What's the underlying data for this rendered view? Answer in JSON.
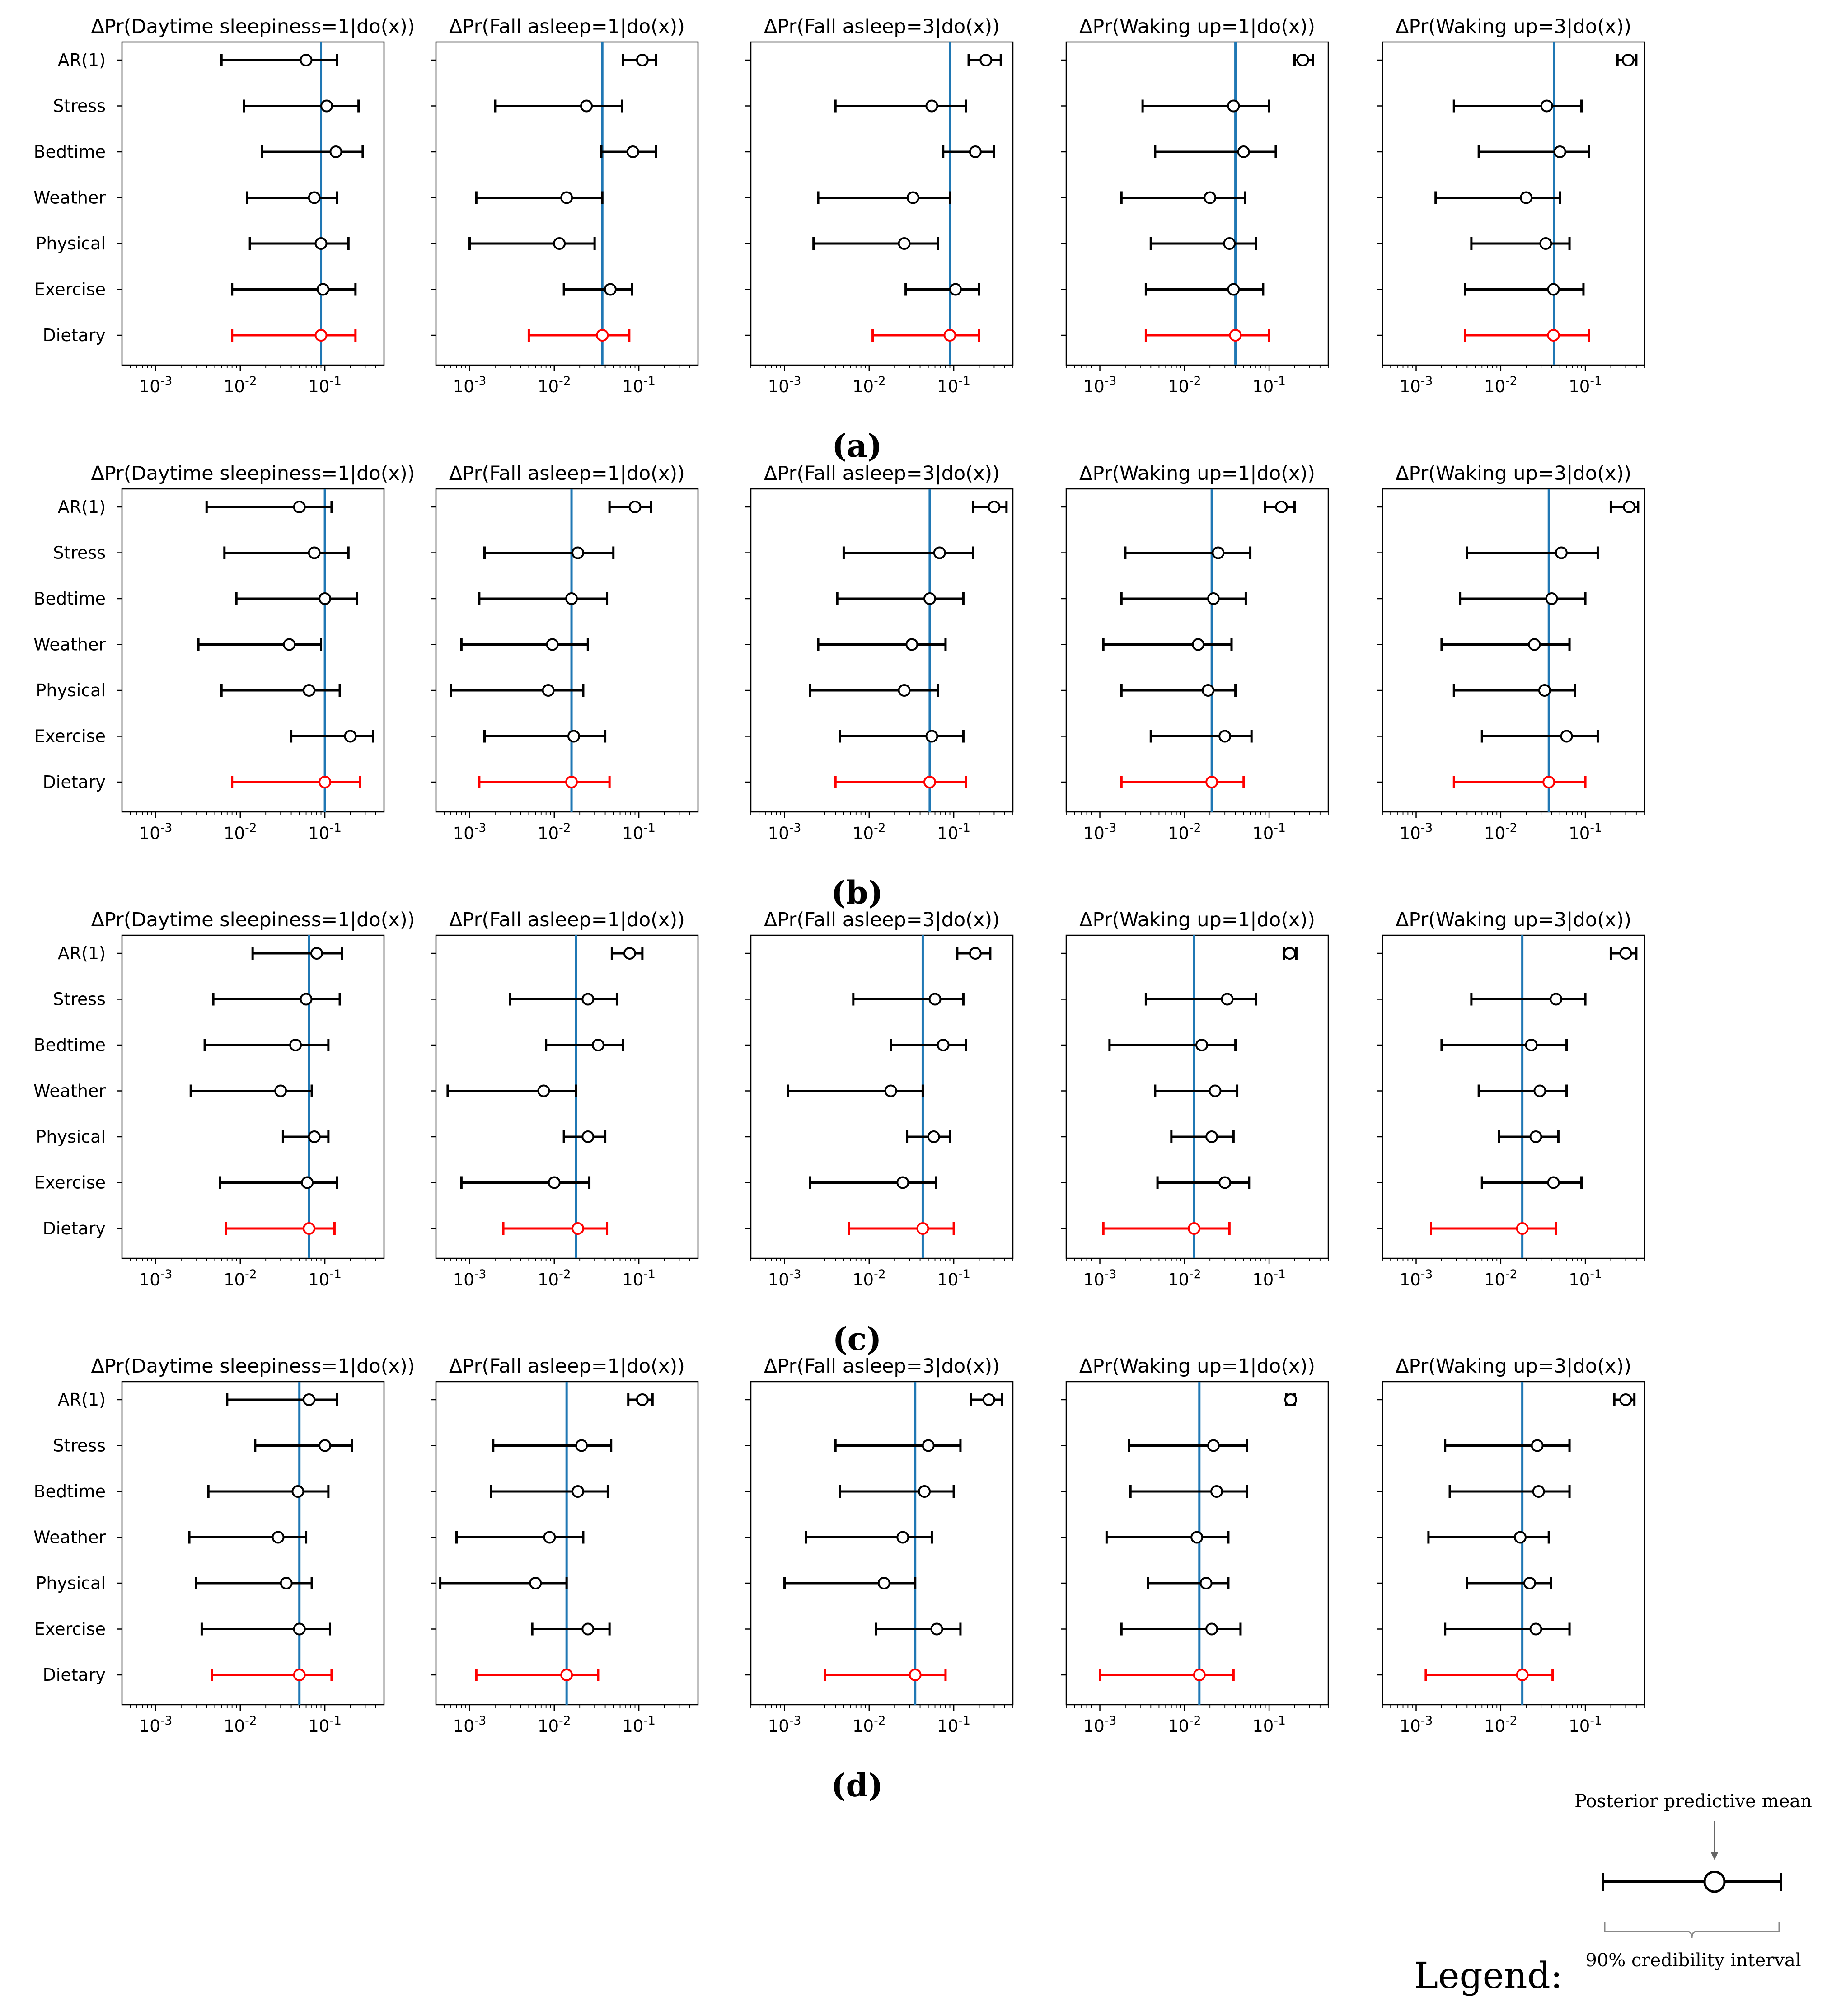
{
  "figure": {
    "panel_labels": [
      "(a)",
      "(b)",
      "(c)",
      "(d)"
    ],
    "legend": {
      "title": "Legend:",
      "mean_label": "Posterior predictive mean",
      "interval_label": "90% credibility interval"
    },
    "colors": {
      "marker": "#000000",
      "highlight": "#ff0000",
      "reference": "#1f77b4",
      "background": "#ffffff"
    }
  },
  "chart_data": {
    "type": "forest-plot",
    "xscale": "log",
    "xlim": [
      0.0004,
      0.5
    ],
    "xticks": [
      0.001,
      0.01,
      0.1
    ],
    "xtick_labels": [
      [
        "10",
        "-3"
      ],
      [
        "10",
        "-2"
      ],
      [
        "10",
        "-1"
      ]
    ],
    "categories": [
      "AR(1)",
      "Stress",
      "Bedtime",
      "Weather",
      "Physical",
      "Exercise",
      "Dietary"
    ],
    "highlight_category": "Dietary",
    "column_titles": [
      "ΔPr(Daytime sleepiness=1|do(x))",
      "ΔPr(Fall asleep=1|do(x))",
      "ΔPr(Fall asleep=3|do(x))",
      "ΔPr(Waking up=1|do(x))",
      "ΔPr(Waking up=3|do(x))"
    ],
    "panels": [
      {
        "label": "(a)",
        "subplots": [
          {
            "title": "ΔPr(Daytime sleepiness=1|do(x))",
            "reference": 0.09,
            "points": [
              [
                0.006,
                0.06,
                0.14
              ],
              [
                0.011,
                0.105,
                0.25
              ],
              [
                0.018,
                0.135,
                0.28
              ],
              [
                0.012,
                0.075,
                0.14
              ],
              [
                0.013,
                0.09,
                0.19
              ],
              [
                0.008,
                0.095,
                0.23
              ],
              [
                0.008,
                0.09,
                0.23
              ]
            ]
          },
          {
            "title": "ΔPr(Fall asleep=1|do(x))",
            "reference": 0.037,
            "points": [
              [
                0.065,
                0.11,
                0.16
              ],
              [
                0.002,
                0.024,
                0.063
              ],
              [
                0.036,
                0.085,
                0.16
              ],
              [
                0.0012,
                0.014,
                0.037
              ],
              [
                0.001,
                0.0115,
                0.03
              ],
              [
                0.013,
                0.046,
                0.083
              ],
              [
                0.005,
                0.037,
                0.077
              ]
            ]
          },
          {
            "title": "ΔPr(Fall asleep=3|do(x))",
            "reference": 0.09,
            "points": [
              [
                0.15,
                0.24,
                0.36
              ],
              [
                0.004,
                0.055,
                0.14
              ],
              [
                0.075,
                0.18,
                0.3
              ],
              [
                0.0025,
                0.033,
                0.09
              ],
              [
                0.0022,
                0.026,
                0.065
              ],
              [
                0.027,
                0.105,
                0.2
              ],
              [
                0.011,
                0.09,
                0.2
              ]
            ]
          },
          {
            "title": "ΔPr(Waking up=1|do(x))",
            "reference": 0.04,
            "points": [
              [
                0.2,
                0.25,
                0.33
              ],
              [
                0.0032,
                0.038,
                0.1
              ],
              [
                0.0045,
                0.05,
                0.12
              ],
              [
                0.0018,
                0.02,
                0.052
              ],
              [
                0.004,
                0.034,
                0.07
              ],
              [
                0.0035,
                0.038,
                0.085
              ],
              [
                0.0035,
                0.04,
                0.1
              ]
            ]
          },
          {
            "title": "ΔPr(Waking up=3|do(x))",
            "reference": 0.043,
            "points": [
              [
                0.24,
                0.32,
                0.4
              ],
              [
                0.0028,
                0.035,
                0.09
              ],
              [
                0.0055,
                0.05,
                0.11
              ],
              [
                0.0017,
                0.02,
                0.05
              ],
              [
                0.0045,
                0.034,
                0.065
              ],
              [
                0.0038,
                0.042,
                0.095
              ],
              [
                0.0038,
                0.042,
                0.11
              ]
            ]
          }
        ]
      },
      {
        "label": "(b)",
        "subplots": [
          {
            "title": "ΔPr(Daytime sleepiness=1|do(x))",
            "reference": 0.1,
            "points": [
              [
                0.004,
                0.05,
                0.12
              ],
              [
                0.0065,
                0.075,
                0.19
              ],
              [
                0.009,
                0.1,
                0.24
              ],
              [
                0.0032,
                0.038,
                0.09
              ],
              [
                0.006,
                0.065,
                0.15
              ],
              [
                0.04,
                0.2,
                0.37
              ],
              [
                0.008,
                0.1,
                0.26
              ]
            ]
          },
          {
            "title": "ΔPr(Fall asleep=1|do(x))",
            "reference": 0.016,
            "points": [
              [
                0.045,
                0.09,
                0.14
              ],
              [
                0.0015,
                0.019,
                0.05
              ],
              [
                0.0013,
                0.016,
                0.042
              ],
              [
                0.0008,
                0.0095,
                0.025
              ],
              [
                0.0006,
                0.0085,
                0.022
              ],
              [
                0.0015,
                0.017,
                0.04
              ],
              [
                0.0013,
                0.016,
                0.045
              ]
            ]
          },
          {
            "title": "ΔPr(Fall asleep=3|do(x))",
            "reference": 0.052,
            "points": [
              [
                0.17,
                0.3,
                0.42
              ],
              [
                0.005,
                0.068,
                0.17
              ],
              [
                0.0042,
                0.052,
                0.13
              ],
              [
                0.0025,
                0.032,
                0.08
              ],
              [
                0.002,
                0.026,
                0.065
              ],
              [
                0.0045,
                0.055,
                0.13
              ],
              [
                0.004,
                0.052,
                0.14
              ]
            ]
          },
          {
            "title": "ΔPr(Waking up=1|do(x))",
            "reference": 0.021,
            "points": [
              [
                0.09,
                0.14,
                0.2
              ],
              [
                0.002,
                0.025,
                0.06
              ],
              [
                0.0018,
                0.022,
                0.053
              ],
              [
                0.0011,
                0.0145,
                0.036
              ],
              [
                0.0018,
                0.019,
                0.04
              ],
              [
                0.004,
                0.03,
                0.062
              ],
              [
                0.0018,
                0.021,
                0.05
              ]
            ]
          },
          {
            "title": "ΔPr(Waking up=3|do(x))",
            "reference": 0.037,
            "points": [
              [
                0.2,
                0.33,
                0.42
              ],
              [
                0.004,
                0.052,
                0.14
              ],
              [
                0.0033,
                0.04,
                0.1
              ],
              [
                0.002,
                0.025,
                0.065
              ],
              [
                0.0028,
                0.033,
                0.075
              ],
              [
                0.006,
                0.06,
                0.14
              ],
              [
                0.0028,
                0.037,
                0.1
              ]
            ]
          }
        ]
      },
      {
        "label": "(c)",
        "subplots": [
          {
            "title": "ΔPr(Daytime sleepiness=1|do(x))",
            "reference": 0.065,
            "points": [
              [
                0.014,
                0.08,
                0.16
              ],
              [
                0.0048,
                0.06,
                0.15
              ],
              [
                0.0038,
                0.045,
                0.11
              ],
              [
                0.0026,
                0.03,
                0.07
              ],
              [
                0.032,
                0.075,
                0.11
              ],
              [
                0.0058,
                0.062,
                0.14
              ],
              [
                0.0068,
                0.065,
                0.13
              ]
            ]
          },
          {
            "title": "ΔPr(Fall asleep=1|do(x))",
            "reference": 0.018,
            "points": [
              [
                0.048,
                0.078,
                0.11
              ],
              [
                0.003,
                0.025,
                0.055
              ],
              [
                0.008,
                0.033,
                0.065
              ],
              [
                0.00055,
                0.0075,
                0.018
              ],
              [
                0.013,
                0.025,
                0.04
              ],
              [
                0.0008,
                0.01,
                0.026
              ],
              [
                0.0025,
                0.019,
                0.042
              ]
            ]
          },
          {
            "title": "ΔPr(Fall asleep=3|do(x))",
            "reference": 0.043,
            "points": [
              [
                0.11,
                0.18,
                0.27
              ],
              [
                0.0065,
                0.06,
                0.13
              ],
              [
                0.018,
                0.075,
                0.14
              ],
              [
                0.0011,
                0.018,
                0.043
              ],
              [
                0.028,
                0.058,
                0.09
              ],
              [
                0.002,
                0.025,
                0.062
              ],
              [
                0.0058,
                0.043,
                0.1
              ]
            ]
          },
          {
            "title": "ΔPr(Waking up=1|do(x))",
            "reference": 0.013,
            "points": [
              [
                0.15,
                0.175,
                0.21
              ],
              [
                0.0035,
                0.032,
                0.07
              ],
              [
                0.0013,
                0.016,
                0.04
              ],
              [
                0.0045,
                0.023,
                0.042
              ],
              [
                0.007,
                0.021,
                0.038
              ],
              [
                0.0048,
                0.03,
                0.058
              ],
              [
                0.0011,
                0.013,
                0.034
              ]
            ]
          },
          {
            "title": "ΔPr(Waking up=3|do(x))",
            "reference": 0.018,
            "points": [
              [
                0.2,
                0.3,
                0.4
              ],
              [
                0.0045,
                0.045,
                0.1
              ],
              [
                0.002,
                0.023,
                0.06
              ],
              [
                0.0055,
                0.029,
                0.06
              ],
              [
                0.0095,
                0.026,
                0.048
              ],
              [
                0.006,
                0.042,
                0.09
              ],
              [
                0.0015,
                0.018,
                0.045
              ]
            ]
          }
        ]
      },
      {
        "label": "(d)",
        "subplots": [
          {
            "title": "ΔPr(Daytime sleepiness=1|do(x))",
            "reference": 0.05,
            "points": [
              [
                0.007,
                0.065,
                0.14
              ],
              [
                0.015,
                0.1,
                0.21
              ],
              [
                0.0042,
                0.048,
                0.11
              ],
              [
                0.0025,
                0.028,
                0.06
              ],
              [
                0.003,
                0.035,
                0.07
              ],
              [
                0.0035,
                0.05,
                0.115
              ],
              [
                0.0046,
                0.05,
                0.12
              ]
            ]
          },
          {
            "title": "ΔPr(Fall asleep=1|do(x))",
            "reference": 0.014,
            "points": [
              [
                0.075,
                0.11,
                0.145
              ],
              [
                0.0019,
                0.021,
                0.047
              ],
              [
                0.0018,
                0.019,
                0.043
              ],
              [
                0.0007,
                0.0088,
                0.022
              ],
              [
                0.00045,
                0.006,
                0.014
              ],
              [
                0.0055,
                0.025,
                0.045
              ],
              [
                0.0012,
                0.014,
                0.033
              ]
            ]
          },
          {
            "title": "ΔPr(Fall asleep=3|do(x))",
            "reference": 0.035,
            "points": [
              [
                0.16,
                0.26,
                0.37
              ],
              [
                0.004,
                0.05,
                0.12
              ],
              [
                0.0045,
                0.045,
                0.1
              ],
              [
                0.0018,
                0.025,
                0.055
              ],
              [
                0.001,
                0.015,
                0.035
              ],
              [
                0.012,
                0.063,
                0.12
              ],
              [
                0.003,
                0.035,
                0.08
              ]
            ]
          },
          {
            "title": "ΔPr(Waking up=1|do(x))",
            "reference": 0.015,
            "points": [
              [
                0.16,
                0.18,
                0.2
              ],
              [
                0.0022,
                0.022,
                0.055
              ],
              [
                0.0023,
                0.024,
                0.055
              ],
              [
                0.0012,
                0.014,
                0.033
              ],
              [
                0.0037,
                0.018,
                0.033
              ],
              [
                0.0018,
                0.021,
                0.046
              ],
              [
                0.001,
                0.015,
                0.038
              ]
            ]
          },
          {
            "title": "ΔPr(Waking up=3|do(x))",
            "reference": 0.018,
            "points": [
              [
                0.22,
                0.3,
                0.38
              ],
              [
                0.0022,
                0.027,
                0.065
              ],
              [
                0.0025,
                0.028,
                0.065
              ],
              [
                0.0014,
                0.017,
                0.037
              ],
              [
                0.004,
                0.022,
                0.039
              ],
              [
                0.0022,
                0.026,
                0.065
              ],
              [
                0.0013,
                0.018,
                0.041
              ]
            ]
          }
        ]
      }
    ]
  }
}
